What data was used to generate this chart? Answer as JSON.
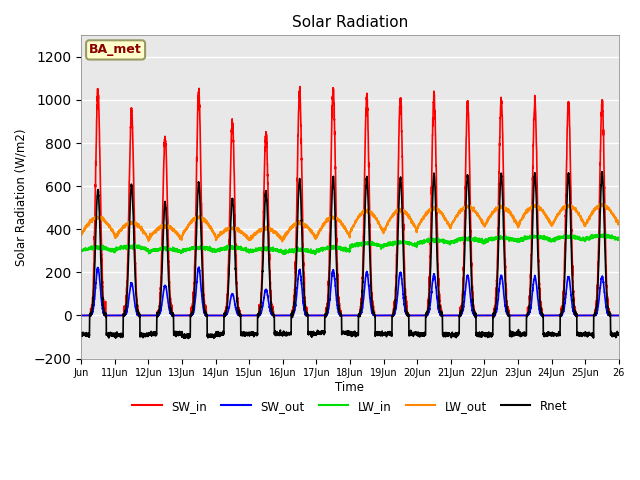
{
  "title": "Solar Radiation",
  "ylabel": "Solar Radiation (W/m2)",
  "xlabel": "Time",
  "ylim": [
    -200,
    1300
  ],
  "yticks": [
    -200,
    0,
    200,
    400,
    600,
    800,
    1000,
    1200
  ],
  "plot_bg_color": "#e8e8e8",
  "fig_bg_color": "#ffffff",
  "label_box_text": "BA_met",
  "label_box_facecolor": "#ffffcc",
  "label_box_edgecolor": "#8B4513",
  "series": {
    "SW_in": {
      "color": "#ff0000",
      "lw": 1.2
    },
    "SW_out": {
      "color": "#0000ff",
      "lw": 1.2
    },
    "LW_in": {
      "color": "#00dd00",
      "lw": 1.2
    },
    "LW_out": {
      "color": "#ff8800",
      "lw": 1.2
    },
    "Rnet": {
      "color": "#000000",
      "lw": 1.2
    }
  },
  "n_days": 16,
  "start_day": 10,
  "points_per_day": 288,
  "SW_in_peaks": [
    1040,
    950,
    830,
    1030,
    900,
    840,
    1040,
    1050,
    1010,
    1010,
    1020,
    990,
    1000,
    990,
    990,
    990
  ],
  "SW_out_peaks": [
    220,
    150,
    140,
    220,
    100,
    120,
    210,
    210,
    200,
    200,
    190,
    185,
    185,
    180,
    180,
    180
  ],
  "LW_in_base": [
    300,
    305,
    295,
    300,
    300,
    295,
    290,
    300,
    320,
    325,
    335,
    340,
    345,
    350,
    350,
    355
  ],
  "LW_out_base": [
    375,
    360,
    355,
    370,
    355,
    350,
    355,
    365,
    385,
    390,
    405,
    415,
    415,
    418,
    418,
    422
  ],
  "LW_out_peaks": [
    80,
    70,
    60,
    85,
    50,
    55,
    75,
    90,
    100,
    100,
    90,
    90,
    90,
    90,
    90,
    90
  ],
  "Rnet_peaks": [
    580,
    605,
    520,
    615,
    545,
    570,
    630,
    640,
    640,
    640,
    655,
    648,
    658,
    658,
    660,
    660
  ],
  "Rnet_night": [
    -90,
    -90,
    -85,
    -95,
    -85,
    -85,
    -85,
    -80,
    -85,
    -85,
    -88,
    -88,
    -88,
    -88,
    -88,
    -88
  ]
}
